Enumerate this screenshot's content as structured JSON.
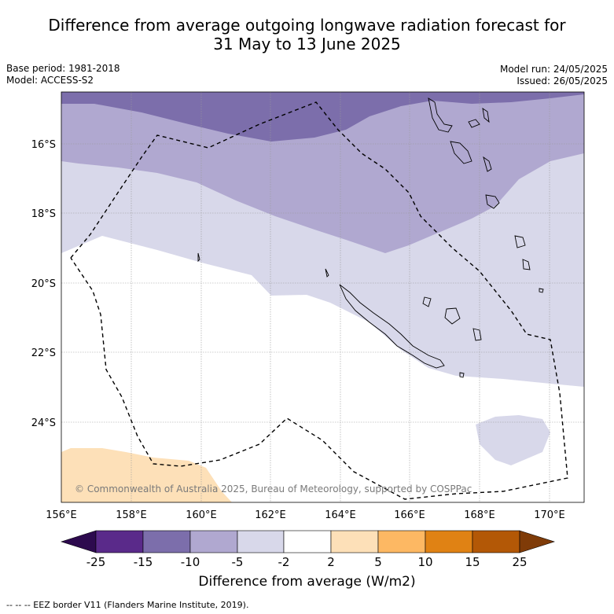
{
  "title_line1": "Difference from average outgoing longwave radiation forecast for",
  "title_line2": "31 May to 13 June 2025",
  "meta": {
    "base_period": "Base period: 1981-2018",
    "model": "Model: ACCESS-S2",
    "model_run": "Model run: 24/05/2025",
    "issued": "Issued: 26/05/2025"
  },
  "map": {
    "lon_ticks": [
      "156°E",
      "158°E",
      "160°E",
      "162°E",
      "164°E",
      "166°E",
      "168°E",
      "170°E"
    ],
    "lat_ticks": [
      "16°S",
      "18°S",
      "20°S",
      "22°S",
      "24°S"
    ],
    "copyright": "© Commonwealth of Australia 2025, Bureau of Meteorology, supported by COSPPac"
  },
  "colorbar": {
    "labels": [
      "-25",
      "-15",
      "-10",
      "-5",
      "-2",
      "2",
      "5",
      "10",
      "15",
      "25"
    ],
    "colors": [
      "#2d0a4e",
      "#5a2a8a",
      "#7c6eab",
      "#b0a8d0",
      "#d8d8ea",
      "#ffffff",
      "#fde0b8",
      "#fdb863",
      "#e08214",
      "#b35806",
      "#7f3b08"
    ],
    "title": "Difference from average (W/m2)"
  },
  "footnote": "--  --  -- EEZ border V11 (Flanders Marine Institute, 2019)."
}
